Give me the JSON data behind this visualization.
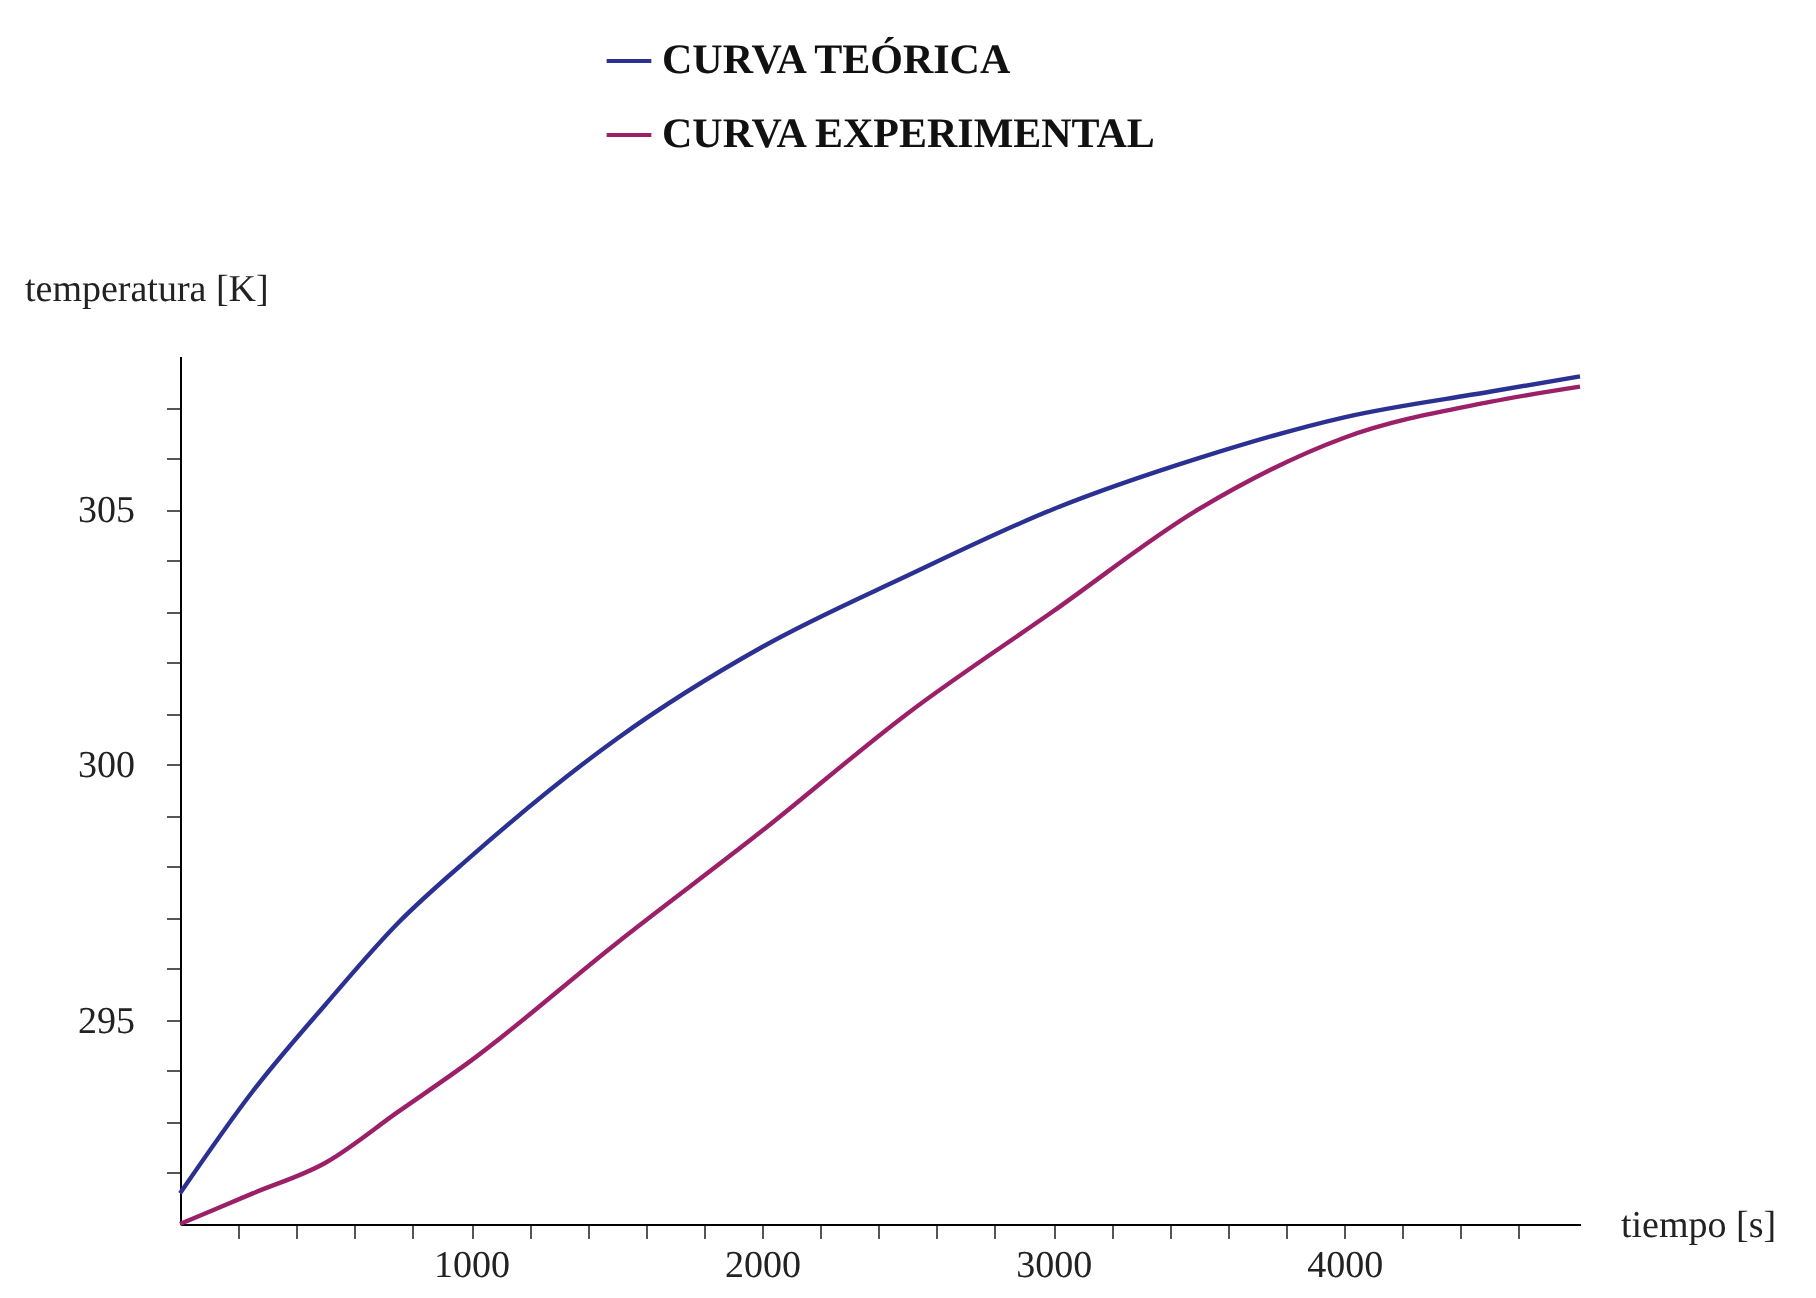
{
  "chart_data": {
    "type": "line",
    "xlabel": "tiempo [s]",
    "ylabel": "temperatura [K]",
    "xlim": [
      0,
      4810
    ],
    "ylim": [
      291,
      308
    ],
    "xticks": [
      {
        "value": 200,
        "label": null
      },
      {
        "value": 400,
        "label": null
      },
      {
        "value": 600,
        "label": null
      },
      {
        "value": 800,
        "label": null
      },
      1000,
      {
        "value": 1200,
        "label": null
      },
      {
        "value": 1400,
        "label": null
      },
      {
        "value": 1600,
        "label": null
      },
      {
        "value": 1800,
        "label": null
      },
      2000,
      {
        "value": 2200,
        "label": null
      },
      {
        "value": 2400,
        "label": null
      },
      {
        "value": 2600,
        "label": null
      },
      {
        "value": 2800,
        "label": null
      },
      3000,
      {
        "value": 3200,
        "label": null
      },
      {
        "value": 3400,
        "label": null
      },
      {
        "value": 3600,
        "label": null
      },
      {
        "value": 3800,
        "label": null
      },
      4000,
      {
        "value": 4200,
        "label": null
      },
      {
        "value": 4400,
        "label": null
      },
      {
        "value": 4600,
        "label": null
      }
    ],
    "yticks": [
      {
        "value": 292,
        "label": null
      },
      {
        "value": 293,
        "label": null
      },
      {
        "value": 294,
        "label": null
      },
      295,
      {
        "value": 296,
        "label": null
      },
      {
        "value": 297,
        "label": null
      },
      {
        "value": 298,
        "label": null
      },
      {
        "value": 299,
        "label": null
      },
      300,
      {
        "value": 301,
        "label": null
      },
      {
        "value": 302,
        "label": null
      },
      {
        "value": 303,
        "label": null
      },
      {
        "value": 304,
        "label": null
      },
      305,
      {
        "value": 306,
        "label": null
      },
      {
        "value": 307,
        "label": null
      }
    ],
    "x": [
      0,
      250,
      500,
      750,
      1000,
      1500,
      2000,
      2500,
      3000,
      3500,
      4000,
      4500,
      4810
    ],
    "series": [
      {
        "name": "CURVA TEÓRICA",
        "color": "#2b3192",
        "values": [
          291.6,
          293.6,
          295.3,
          296.9,
          298.2,
          300.5,
          302.3,
          303.7,
          305.0,
          306.0,
          306.8,
          307.3,
          307.6
        ]
      },
      {
        "name": "CURVA EXPERIMENTAL",
        "color": "#9b2068",
        "values": [
          291.0,
          291.6,
          292.2,
          293.2,
          294.2,
          296.5,
          298.7,
          301.0,
          303.0,
          305.0,
          306.4,
          307.1,
          307.4
        ]
      }
    ],
    "legend": "top",
    "marker": "none",
    "line_style": "solid",
    "grid": false
  }
}
